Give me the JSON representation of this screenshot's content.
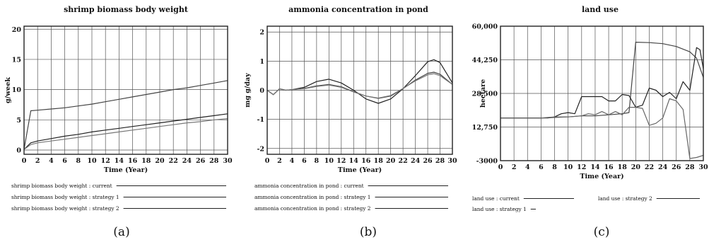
{
  "figure_labels": [
    "(a)",
    "(b)",
    "(c)"
  ],
  "chart_data": [
    {
      "type": "line",
      "title": "shrimp biomass body weight",
      "xlabel": "Time (Year)",
      "ylabel": "g/week",
      "xlim": [
        0,
        30
      ],
      "ylim": [
        -0.7,
        20.5
      ],
      "xticks": [
        "0",
        "2",
        "4",
        "6",
        "8",
        "10",
        "12",
        "14",
        "16",
        "18",
        "20",
        "22",
        "24",
        "26",
        "28",
        "30"
      ],
      "yticks": [
        "0",
        "5",
        "10",
        "15",
        "20"
      ],
      "grid": true,
      "legend_position": "bottom-left",
      "series": [
        {
          "name": "shrimp biomass body weight : current",
          "color": "#444444",
          "x": [
            0,
            1,
            2,
            4,
            6,
            8,
            10,
            12,
            14,
            16,
            18,
            20,
            22,
            24,
            26,
            28,
            30
          ],
          "y": [
            0.1,
            6.5,
            6.6,
            6.8,
            7.0,
            7.3,
            7.6,
            8.0,
            8.4,
            8.8,
            9.2,
            9.6,
            10.0,
            10.3,
            10.7,
            11.1,
            11.5
          ]
        },
        {
          "name": "shrimp biomass body weight : strategy 1",
          "color": "#222222",
          "x": [
            0,
            1,
            2,
            4,
            6,
            8,
            10,
            12,
            14,
            16,
            18,
            20,
            22,
            24,
            26,
            28,
            30
          ],
          "y": [
            0.1,
            1.2,
            1.5,
            1.9,
            2.3,
            2.6,
            3.0,
            3.3,
            3.6,
            3.9,
            4.2,
            4.5,
            4.8,
            5.1,
            5.4,
            5.7,
            6.0
          ]
        },
        {
          "name": "shrimp biomass body weight : strategy 2",
          "color": "#777777",
          "x": [
            0,
            1,
            2,
            4,
            6,
            8,
            10,
            12,
            14,
            16,
            18,
            20,
            22,
            24,
            26,
            28,
            30
          ],
          "y": [
            0.1,
            0.9,
            1.2,
            1.5,
            1.8,
            2.1,
            2.4,
            2.7,
            3.0,
            3.3,
            3.6,
            3.9,
            4.2,
            4.5,
            4.7,
            5.0,
            5.2
          ]
        }
      ]
    },
    {
      "type": "line",
      "title": "ammonia concentration in pond",
      "xlabel": "Time (Year)",
      "ylabel": "mg g/day",
      "xlim": [
        0,
        30
      ],
      "ylim": [
        -2.2,
        2.2
      ],
      "xticks": [
        "0",
        "2",
        "4",
        "6",
        "8",
        "10",
        "12",
        "14",
        "16",
        "18",
        "20",
        "22",
        "24",
        "26",
        "28",
        "30"
      ],
      "yticks": [
        "-2",
        "-1",
        "0",
        "1",
        "2"
      ],
      "grid": true,
      "legend_position": "bottom-left",
      "series": [
        {
          "name": "ammonia concentration in pond : current",
          "color": "#222222",
          "x": [
            0,
            1,
            2,
            3,
            4,
            6,
            8,
            10,
            12,
            14,
            16,
            18,
            20,
            22,
            24,
            26,
            27,
            28,
            30
          ],
          "y": [
            0,
            -0.15,
            0.05,
            0.0,
            0.02,
            0.1,
            0.3,
            0.38,
            0.25,
            0.0,
            -0.3,
            -0.45,
            -0.3,
            0.05,
            0.5,
            0.98,
            1.05,
            0.95,
            0.25
          ]
        },
        {
          "name": "ammonia concentration in pond : strategy 1",
          "color": "#444444",
          "x": [
            0,
            1,
            2,
            3,
            4,
            6,
            8,
            10,
            12,
            14,
            16,
            18,
            20,
            22,
            24,
            26,
            27,
            28,
            30
          ],
          "y": [
            0,
            -0.15,
            0.05,
            0.0,
            0.02,
            0.06,
            0.15,
            0.2,
            0.12,
            -0.05,
            -0.2,
            -0.28,
            -0.2,
            0.05,
            0.35,
            0.58,
            0.62,
            0.55,
            0.2
          ]
        },
        {
          "name": "ammonia concentration in pond : strategy 2",
          "color": "#777777",
          "x": [
            0,
            1,
            2,
            3,
            4,
            6,
            8,
            10,
            12,
            14,
            16,
            18,
            20,
            22,
            24,
            26,
            27,
            28,
            30
          ],
          "y": [
            0,
            -0.15,
            0.05,
            0.0,
            0.02,
            0.05,
            0.13,
            0.18,
            0.1,
            -0.06,
            -0.2,
            -0.27,
            -0.18,
            0.06,
            0.32,
            0.53,
            0.57,
            0.5,
            0.2
          ]
        }
      ]
    },
    {
      "type": "line",
      "title": "land use",
      "xlabel": "Time (Year)",
      "ylabel": "hectare",
      "xlim": [
        0,
        30
      ],
      "ylim": [
        -3000,
        60000
      ],
      "xticks": [
        "0",
        "2",
        "4",
        "6",
        "8",
        "10",
        "12",
        "14",
        "16",
        "18",
        "20",
        "22",
        "24",
        "26",
        "28",
        "30"
      ],
      "yticks": [
        "60,000",
        "44,250",
        "28,500",
        "12,750",
        "-3000"
      ],
      "grid": true,
      "legend_position": "bottom",
      "series": [
        {
          "name": "land use : current",
          "color": "#444444",
          "x": [
            0,
            6,
            10,
            12,
            14,
            16,
            18,
            19,
            20,
            22,
            24,
            26,
            28,
            29,
            30
          ],
          "y": [
            17000,
            17000,
            17500,
            18000,
            18000,
            18500,
            19000,
            19500,
            52500,
            52300,
            51800,
            50500,
            48000,
            45000,
            36000
          ]
        },
        {
          "name": "land use : strategy 1",
          "color": "#222222",
          "x": [
            0,
            6,
            7,
            8,
            9,
            10,
            11,
            12,
            13,
            14,
            15,
            16,
            17,
            18,
            19,
            20,
            21,
            22,
            23,
            24,
            25,
            26,
            27,
            28,
            29,
            29.5,
            30
          ],
          "y": [
            17000,
            17000,
            17000,
            17500,
            19000,
            19500,
            19000,
            27000,
            27000,
            27000,
            27000,
            25000,
            25000,
            28000,
            27500,
            22000,
            23000,
            31000,
            30000,
            27000,
            29000,
            26000,
            34000,
            30000,
            50000,
            49000,
            40000
          ]
        },
        {
          "name": "land use : strategy 2",
          "color": "#666666",
          "x": [
            0,
            6,
            8,
            10,
            12,
            13,
            14,
            15,
            16,
            17,
            18,
            19,
            20,
            21,
            22,
            23,
            24,
            25,
            26,
            27,
            28,
            29,
            30
          ],
          "y": [
            17000,
            17000,
            17500,
            17500,
            18000,
            19000,
            18500,
            20000,
            18500,
            20000,
            18500,
            22000,
            22000,
            21500,
            13500,
            14500,
            17000,
            26000,
            25000,
            21000,
            -2000,
            -1500,
            -500
          ]
        }
      ]
    }
  ]
}
